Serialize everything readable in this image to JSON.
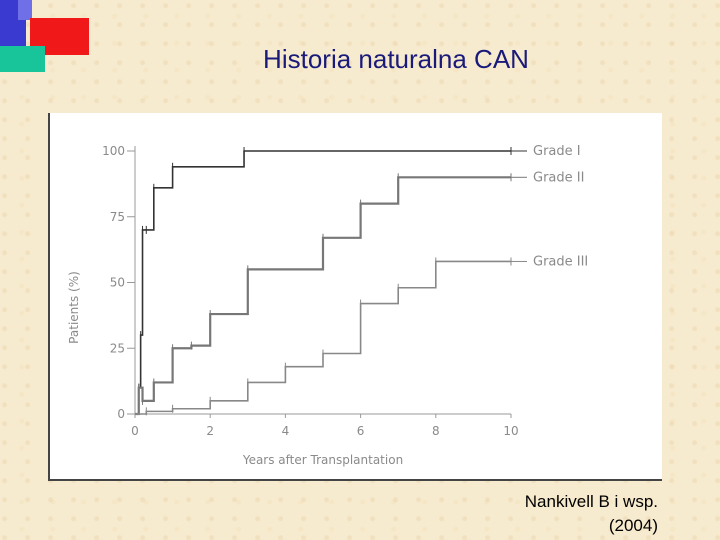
{
  "slide": {
    "title": "Historia naturalna CAN",
    "citation_line1": "Nankivell B i wsp.",
    "citation_line2": "(2004)"
  },
  "colors": {
    "title": "#1a1a7a",
    "deco_blue": "#3a3ad0",
    "deco_red": "#f01818",
    "deco_green": "#18c49a",
    "grade1": "#333333",
    "grade2": "#777777",
    "grade3": "#888888"
  },
  "chart_data": {
    "type": "line",
    "step": true,
    "title": "",
    "xlabel": "Years after Transplantation",
    "ylabel": "Patients (%)",
    "xlim": [
      0,
      10
    ],
    "ylim": [
      0,
      100
    ],
    "xticks": [
      0,
      2,
      4,
      6,
      8,
      10
    ],
    "yticks": [
      0,
      25,
      50,
      75,
      100
    ],
    "grid": false,
    "legend_placement": "right end of each line",
    "series": [
      {
        "name": "Grade I",
        "x": [
          0,
          0.1,
          0.15,
          0.2,
          0.3,
          0.5,
          1,
          2.9,
          10
        ],
        "y": [
          0,
          10,
          30,
          70,
          70,
          86,
          94,
          100,
          100
        ]
      },
      {
        "name": "Grade II",
        "x": [
          0,
          0.1,
          0.2,
          0.5,
          1,
          1.5,
          2,
          3,
          5,
          6,
          7,
          10
        ],
        "y": [
          0,
          10,
          5,
          12,
          25,
          26,
          38,
          55,
          67,
          80,
          90,
          90
        ]
      },
      {
        "name": "Grade III",
        "x": [
          0,
          0.3,
          1,
          2,
          3,
          4,
          5,
          6,
          7,
          8,
          10
        ],
        "y": [
          0,
          1,
          2,
          5,
          12,
          18,
          23,
          42,
          48,
          58,
          58
        ]
      }
    ]
  }
}
